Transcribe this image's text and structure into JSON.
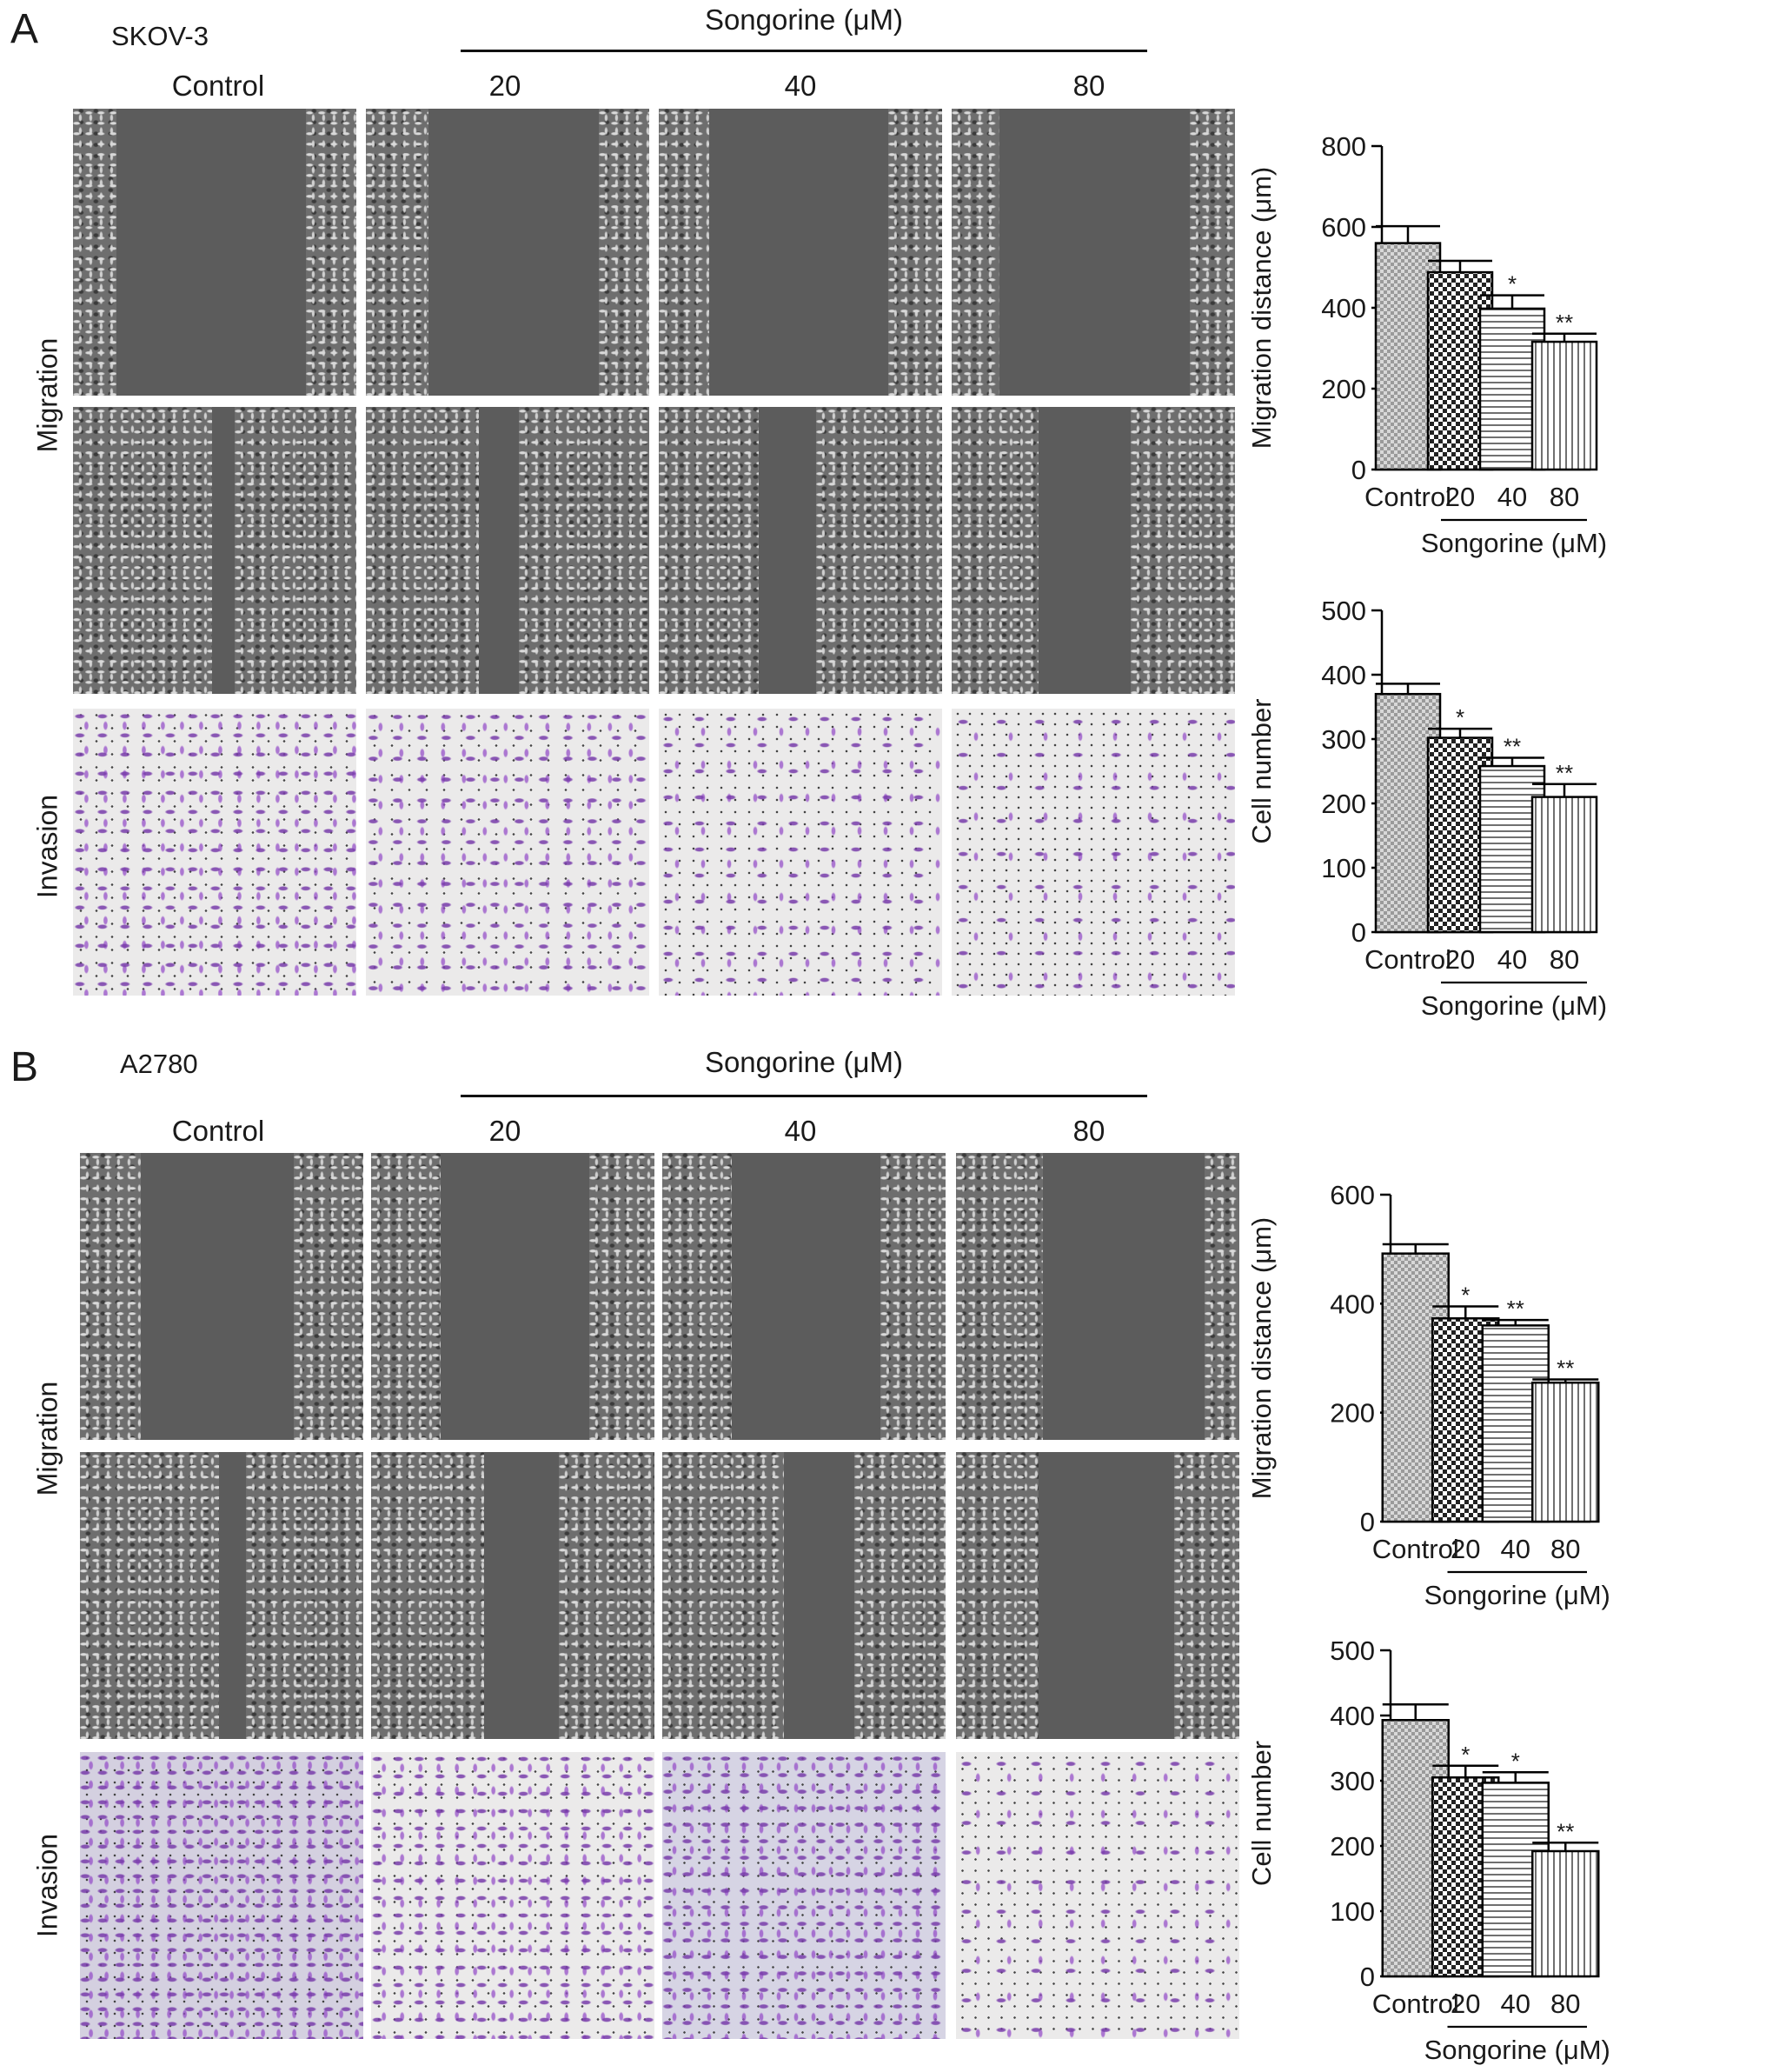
{
  "figure": {
    "panels": [
      {
        "letter": "A",
        "cell_line": "SKOV-3",
        "treatment_title": "Songorine (μM)",
        "column_headers": [
          "Control",
          "20",
          "40",
          "80"
        ],
        "row_labels": [
          "Migration",
          "Invasion"
        ]
      },
      {
        "letter": "B",
        "cell_line": "A2780",
        "treatment_title": "Songorine (μM)",
        "column_headers": [
          "Control",
          "20",
          "40",
          "80"
        ],
        "row_labels": [
          "Migration",
          "Invasion"
        ]
      }
    ]
  },
  "chart_data": [
    {
      "type": "bar",
      "ylabel": "Migration distance (μm)",
      "categories": [
        "Control",
        "20",
        "40",
        "80"
      ],
      "group_label": "Songorine (μM)",
      "values": [
        560,
        488,
        398,
        316
      ],
      "errors": [
        42,
        28,
        33,
        20
      ],
      "significance": [
        "",
        "",
        "*",
        "**"
      ],
      "yticks": [
        "0",
        "200",
        "400",
        "600",
        "800"
      ],
      "ylim": [
        0,
        800
      ],
      "colors": {
        "bar_stroke": "#000000",
        "bar_fill": "#ffffff"
      }
    },
    {
      "type": "bar",
      "ylabel": "Cell number",
      "categories": [
        "Control",
        "20",
        "40",
        "80"
      ],
      "group_label": "Songorine (μM)",
      "values": [
        370,
        302,
        258,
        210
      ],
      "errors": [
        16,
        14,
        13,
        20
      ],
      "significance": [
        "",
        "*",
        "**",
        "**"
      ],
      "yticks": [
        "0",
        "100",
        "200",
        "300",
        "400",
        "500"
      ],
      "ylim": [
        0,
        500
      ],
      "colors": {
        "bar_stroke": "#000000",
        "bar_fill": "#ffffff"
      }
    },
    {
      "type": "bar",
      "ylabel": "Migration distance (μm)",
      "categories": [
        "Control",
        "20",
        "40",
        "80"
      ],
      "group_label": "Songorine (μM)",
      "values": [
        492,
        373,
        360,
        255
      ],
      "errors": [
        17,
        22,
        10,
        6
      ],
      "significance": [
        "",
        "*",
        "**",
        "**"
      ],
      "yticks": [
        "0",
        "200",
        "400",
        "600"
      ],
      "ylim": [
        0,
        600
      ],
      "colors": {
        "bar_stroke": "#000000",
        "bar_fill": "#ffffff"
      }
    },
    {
      "type": "bar",
      "ylabel": "Cell number",
      "categories": [
        "Control",
        "20",
        "40",
        "80"
      ],
      "group_label": "Songorine (μM)",
      "values": [
        393,
        305,
        297,
        192
      ],
      "errors": [
        24,
        18,
        16,
        13
      ],
      "significance": [
        "",
        "*",
        "*",
        "**"
      ],
      "yticks": [
        "0",
        "100",
        "200",
        "300",
        "400",
        "500"
      ],
      "ylim": [
        0,
        500
      ],
      "colors": {
        "bar_stroke": "#000000",
        "bar_fill": "#ffffff"
      }
    }
  ]
}
